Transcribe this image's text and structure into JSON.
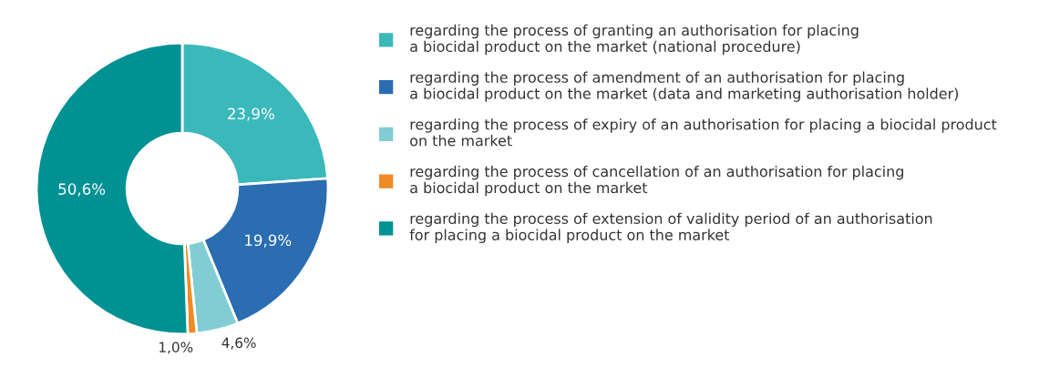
{
  "chart_data": {
    "type": "donut",
    "categories": [
      "regarding the process of granting an authorisation for placing\na biocidal product on the market (national procedure)",
      "regarding the process of amendment of an authorisation for placing\na biocidal product on the market (data and marketing authorisation holder)",
      "regarding the process of expiry of an authorisation for placing a biocidal product\non the market",
      "regarding the process of cancellation of an authorisation for placing\na biocidal product on the market",
      "regarding the process of extension of validity period of an authorisation\nfor placing a biocidal product on the market"
    ],
    "values": [
      23.9,
      19.9,
      4.6,
      1.0,
      50.6
    ],
    "value_labels": [
      "23,9%",
      "19,9%",
      "4,6%",
      "1,0%",
      "50,6%"
    ],
    "colors": [
      "#3bb8ba",
      "#2a6db1",
      "#80cdd3",
      "#f08a24",
      "#009193"
    ],
    "legend": "right"
  }
}
